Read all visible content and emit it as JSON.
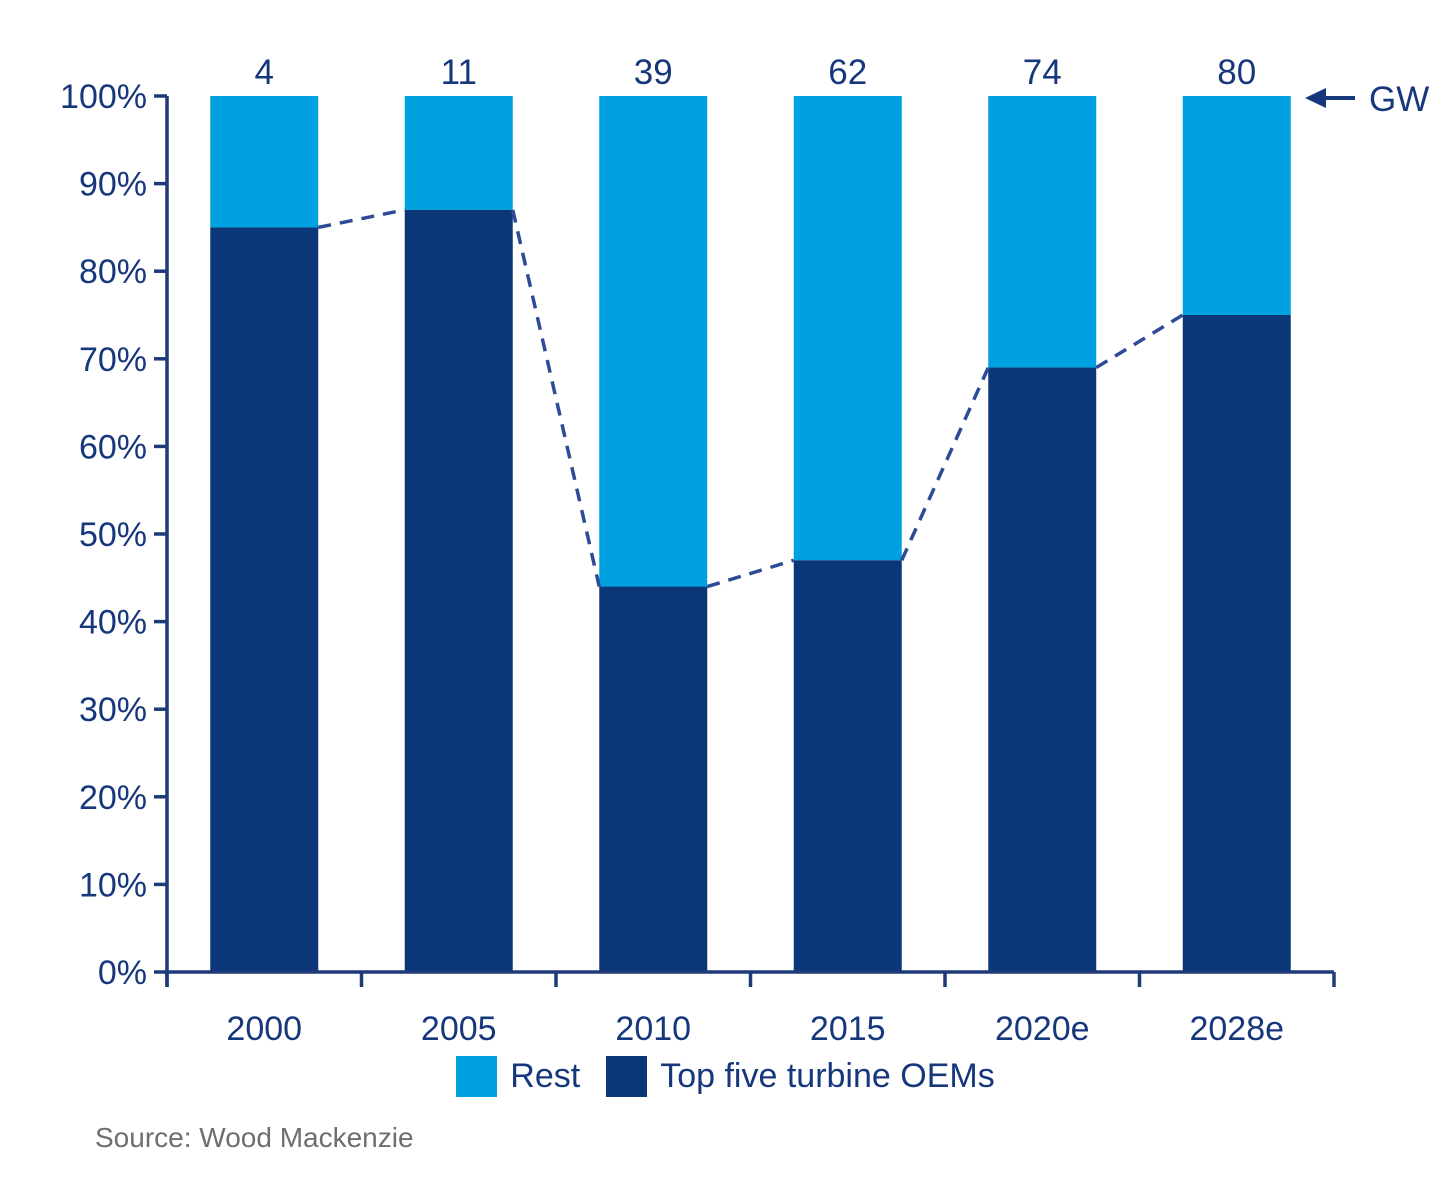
{
  "chart_data": {
    "type": "bar",
    "variant": "stacked-100-percent",
    "title": "",
    "categories": [
      "2000",
      "2005",
      "2010",
      "2015",
      "2020e",
      "2028e"
    ],
    "series": [
      {
        "name": "Top five turbine OEMs",
        "color": "#0a3778",
        "values": [
          85,
          87,
          44,
          47,
          69,
          75
        ]
      },
      {
        "name": "Rest",
        "color": "#00a1e0",
        "values": [
          15,
          13,
          56,
          53,
          31,
          25
        ]
      }
    ],
    "bar_top_labels": {
      "unit": "GW",
      "values": [
        "4",
        "11",
        "39",
        "62",
        "74",
        "80"
      ]
    },
    "annotation": {
      "arrow_label": "GW",
      "arrow_direction": "left",
      "position": "top-right"
    },
    "y_axis": {
      "min": 0,
      "max": 100,
      "step": 10,
      "tick_labels": [
        "0%",
        "10%",
        "20%",
        "30%",
        "40%",
        "50%",
        "60%",
        "70%",
        "80%",
        "90%",
        "100%"
      ]
    },
    "trend_line": {
      "follows_series": "Top five turbine OEMs",
      "style": "dashed",
      "color": "#2d4b96"
    },
    "grid": false,
    "legend_position": "bottom"
  },
  "legend": {
    "items": [
      {
        "label": "Rest",
        "color": "#00a1e0"
      },
      {
        "label": "Top five turbine OEMs",
        "color": "#0a3778"
      }
    ]
  },
  "source": {
    "text": "Source: Wood Mackenzie"
  },
  "colors": {
    "rest": "#00a1e0",
    "top_five": "#0a3778",
    "axis": "#1e3a78",
    "text": "#17377d",
    "trend_dash": "#2d4b96",
    "source_text": "#6d6e71"
  }
}
